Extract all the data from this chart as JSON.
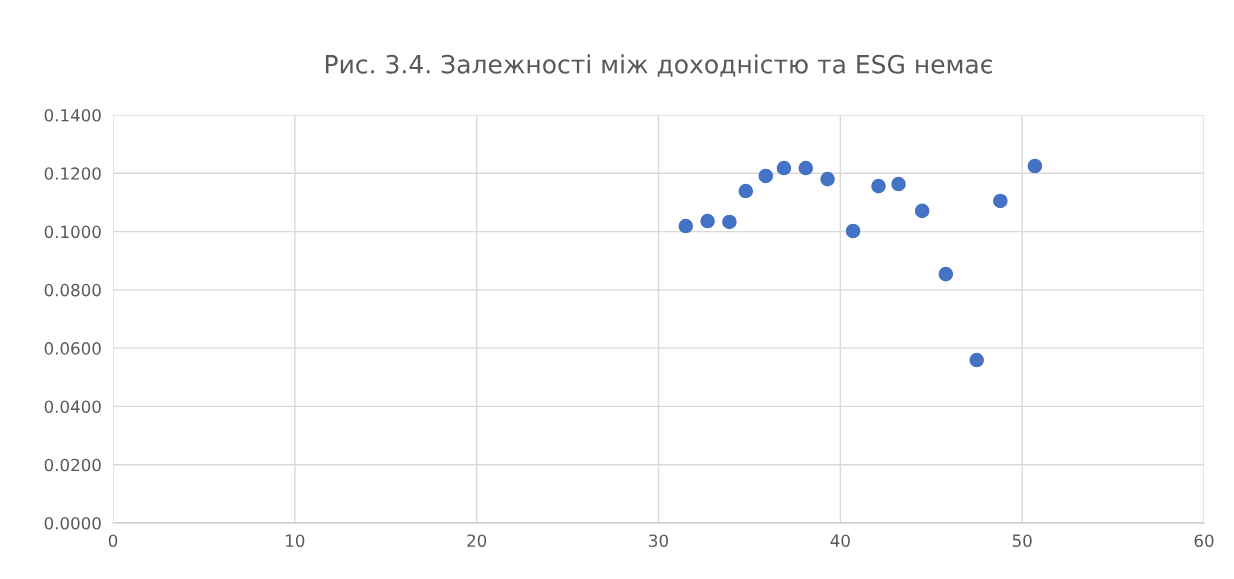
{
  "chart_data": {
    "type": "scatter",
    "title": "Рис. 3.4. Залежності між доходністю та ESG немає",
    "x": [
      31.5,
      32.7,
      33.9,
      34.8,
      35.9,
      36.9,
      38.1,
      39.3,
      40.7,
      42.1,
      43.2,
      44.5,
      45.8,
      47.5,
      48.8,
      50.7
    ],
    "series": [
      {
        "color": "#4472c4",
        "values": [
          0.1019,
          0.1036,
          0.1033,
          0.1139,
          0.1191,
          0.1218,
          0.1218,
          0.118,
          0.1002,
          0.1156,
          0.1163,
          0.1071,
          0.0854,
          0.0559,
          0.1105,
          0.1225
        ]
      }
    ],
    "xlim": [
      0,
      60
    ],
    "xticks": [
      0,
      10,
      20,
      30,
      40,
      50,
      60
    ],
    "ylim": [
      0,
      0.14
    ],
    "yticks": [
      {
        "value": 0,
        "label": "0.0000"
      },
      {
        "value": 0.02,
        "label": "0.0200"
      },
      {
        "value": 0.04,
        "label": "0.0400"
      },
      {
        "value": 0.06,
        "label": "0.0600"
      },
      {
        "value": 0.08,
        "label": "0.0800"
      },
      {
        "value": 0.1,
        "label": "0.1000"
      },
      {
        "value": 0.12,
        "label": "0.1200"
      },
      {
        "value": 0.14,
        "label": "0.1400"
      }
    ],
    "grid": true,
    "marker": "circle"
  }
}
